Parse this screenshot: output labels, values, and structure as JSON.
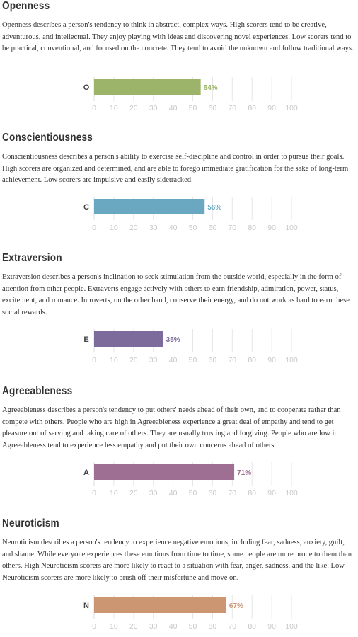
{
  "sections": [
    {
      "title": "Openness",
      "description": "Openness describes a person's tendency to think in abstract, complex ways. High scorers tend to be creative, adventurous, and intellectual. They enjoy playing with ideas and discovering novel experiences. Low scorers tend to be practical, conventional, and focused on the concrete. They tend to avoid the unknown and follow traditional ways.",
      "bar_letter": "O",
      "value_text": "54%",
      "color": "#9cb46a"
    },
    {
      "title": "Conscientiousness",
      "description": "Conscientiousness describes a person's ability to exercise self-discipline and control in order to pursue their goals. High scorers are organized and determined, and are able to forego immediate gratification for the sake of long-term achievement. Low scorers are impulsive and easily sidetracked.",
      "bar_letter": "C",
      "value_text": "56%",
      "color": "#6aa8c2"
    },
    {
      "title": "Extraversion",
      "description": "Extraversion describes a person's inclination to seek stimulation from the outside world, especially in the form of attention from other people. Extraverts engage actively with others to earn friendship, admiration, power, status, excitement, and romance. Introverts, on the other hand, conserve their energy, and do not work as hard to earn these social rewards.",
      "bar_letter": "E",
      "value_text": "35%",
      "color": "#7d6b9b"
    },
    {
      "title": "Agreeableness",
      "description": "Agreeableness describes a person's tendency to put others' needs ahead of their own, and to cooperate rather than compete with others. People who are high in Agreeableness experience a great deal of empathy and tend to get pleasure out of serving and taking care of others. They are usually trusting and forgiving. People who are low in Agreeableness tend to experience less empathy and put their own concerns ahead of others.",
      "bar_letter": "A",
      "value_text": "71%",
      "color": "#9e6f92"
    },
    {
      "title": "Neuroticism",
      "description": "Neuroticism describes a person's tendency to experience negative emotions, including fear, sadness, anxiety, guilt, and shame. While everyone experiences these emotions from time to time, some people are more prone to them than others. High Neuroticism scorers are more likely to react to a situation with fear, anger, sadness, and the like. Low Neuroticism scorers are more likely to brush off their misfortune and move on.",
      "bar_letter": "N",
      "value_text": "67%",
      "color": "#cd9673"
    }
  ],
  "chart_data": [
    {
      "type": "bar",
      "categories": [
        "O"
      ],
      "values": [
        54
      ],
      "xlim": [
        0,
        100
      ],
      "ticks": [
        "0",
        "10",
        "20",
        "30",
        "40",
        "50",
        "60",
        "70",
        "80",
        "90",
        "100"
      ],
      "grid": true
    },
    {
      "type": "bar",
      "categories": [
        "C"
      ],
      "values": [
        56
      ],
      "xlim": [
        0,
        100
      ],
      "ticks": [
        "0",
        "10",
        "20",
        "30",
        "40",
        "50",
        "60",
        "70",
        "80",
        "90",
        "100"
      ],
      "grid": true
    },
    {
      "type": "bar",
      "categories": [
        "E"
      ],
      "values": [
        35
      ],
      "xlim": [
        0,
        100
      ],
      "ticks": [
        "0",
        "10",
        "20",
        "30",
        "40",
        "50",
        "60",
        "70",
        "80",
        "90",
        "100"
      ],
      "grid": true
    },
    {
      "type": "bar",
      "categories": [
        "A"
      ],
      "values": [
        71
      ],
      "xlim": [
        0,
        100
      ],
      "ticks": [
        "0",
        "10",
        "20",
        "30",
        "40",
        "50",
        "60",
        "70",
        "80",
        "90",
        "100"
      ],
      "grid": true
    },
    {
      "type": "bar",
      "categories": [
        "N"
      ],
      "values": [
        67
      ],
      "xlim": [
        0,
        100
      ],
      "ticks": [
        "0",
        "10",
        "20",
        "30",
        "40",
        "50",
        "60",
        "70",
        "80",
        "90",
        "100"
      ],
      "grid": true
    }
  ]
}
